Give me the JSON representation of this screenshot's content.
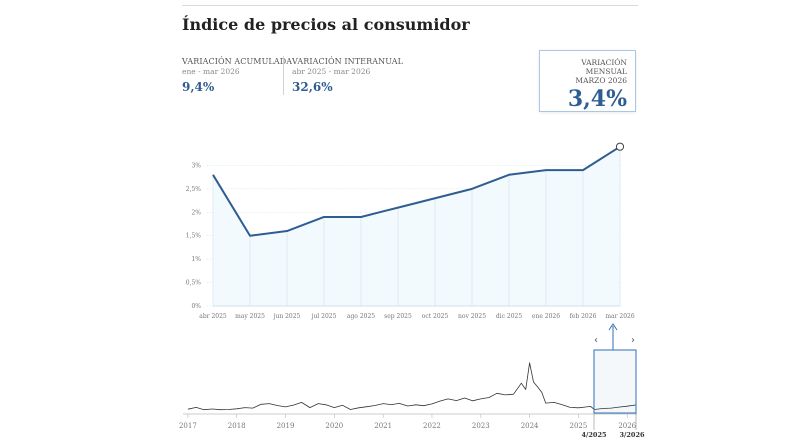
{
  "title": "Índice de precios al consumidor",
  "kpis": {
    "accumulated": {
      "label": "VARIACIÓN ACUMULADA",
      "period": "ene - mar 2026",
      "value": "9,4%"
    },
    "interannual": {
      "label": "VARIACIÓN INTERANUAL",
      "period": "abr 2025 - mar 2026",
      "value": "32,6%"
    },
    "monthly": {
      "label": "VARIACIÓN MENSUAL",
      "period": "MARZO 2026",
      "value": "3,4%"
    }
  },
  "chart_data": [
    {
      "type": "area",
      "categories": [
        "abr 2025",
        "may 2025",
        "jun 2025",
        "jul 2025",
        "ago 2025",
        "sep 2025",
        "oct 2025",
        "nov 2025",
        "dic 2025",
        "ene 2026",
        "feb 2026",
        "mar 2026"
      ],
      "values": [
        2.8,
        1.5,
        1.6,
        1.9,
        1.9,
        2.1,
        2.3,
        2.5,
        2.8,
        2.9,
        2.9,
        3.4
      ],
      "y_ticks": [
        "0%",
        "0,5%",
        "1%",
        "1,5%",
        "2%",
        "2,5%",
        "3%"
      ],
      "ylim": [
        0,
        3.5
      ],
      "highlighted": "mar 2026",
      "colors": {
        "line": "#2e5d92",
        "fill": "#f3fafd",
        "grid": "#d7e6ef"
      }
    },
    {
      "type": "line",
      "x_ticks": [
        "2017",
        "2018",
        "2019",
        "2020",
        "2021",
        "2022",
        "2023",
        "2024",
        "2025",
        "2026"
      ],
      "brush": {
        "start": "4/2025",
        "end": "3/2026"
      },
      "brush_arrows": [
        "‹",
        "›"
      ],
      "colors": {
        "line": "#333333",
        "brush_border": "#2e6fb8"
      },
      "x": [
        2017.0,
        2017.17,
        2017.33,
        2017.5,
        2017.67,
        2017.83,
        2018.0,
        2018.17,
        2018.33,
        2018.5,
        2018.67,
        2018.83,
        2019.0,
        2019.17,
        2019.33,
        2019.5,
        2019.67,
        2019.83,
        2020.0,
        2020.17,
        2020.33,
        2020.5,
        2020.67,
        2020.83,
        2021.0,
        2021.17,
        2021.33,
        2021.5,
        2021.67,
        2021.83,
        2022.0,
        2022.17,
        2022.33,
        2022.5,
        2022.67,
        2022.83,
        2023.0,
        2023.17,
        2023.33,
        2023.5,
        2023.67,
        2023.83,
        2023.92,
        2024.0,
        2024.08,
        2024.17,
        2024.25,
        2024.33,
        2024.5,
        2024.67,
        2024.83,
        2025.0,
        2025.17,
        2025.25,
        2025.33,
        2025.5,
        2025.67,
        2025.83,
        2026.0,
        2026.17
      ],
      "values": [
        1.6,
        2.4,
        1.4,
        1.7,
        1.4,
        1.5,
        1.8,
        2.3,
        2.1,
        3.7,
        4.0,
        3.2,
        2.6,
        3.4,
        4.5,
        2.3,
        4.0,
        3.5,
        2.3,
        3.3,
        1.5,
        2.2,
        2.7,
        3.2,
        4.0,
        3.6,
        4.1,
        3.0,
        3.5,
        3.1,
        3.9,
        5.1,
        6.0,
        5.3,
        6.4,
        5.2,
        6.0,
        6.6,
        8.4,
        7.7,
        8.0,
        12.7,
        10.0,
        21.4,
        13.2,
        11.0,
        8.8,
        4.2,
        4.5,
        3.5,
        2.4,
        2.2,
        2.6,
        2.8,
        1.5,
        1.9,
        2.1,
        2.5,
        2.9,
        3.4
      ],
      "ylim": [
        0,
        26
      ]
    }
  ]
}
